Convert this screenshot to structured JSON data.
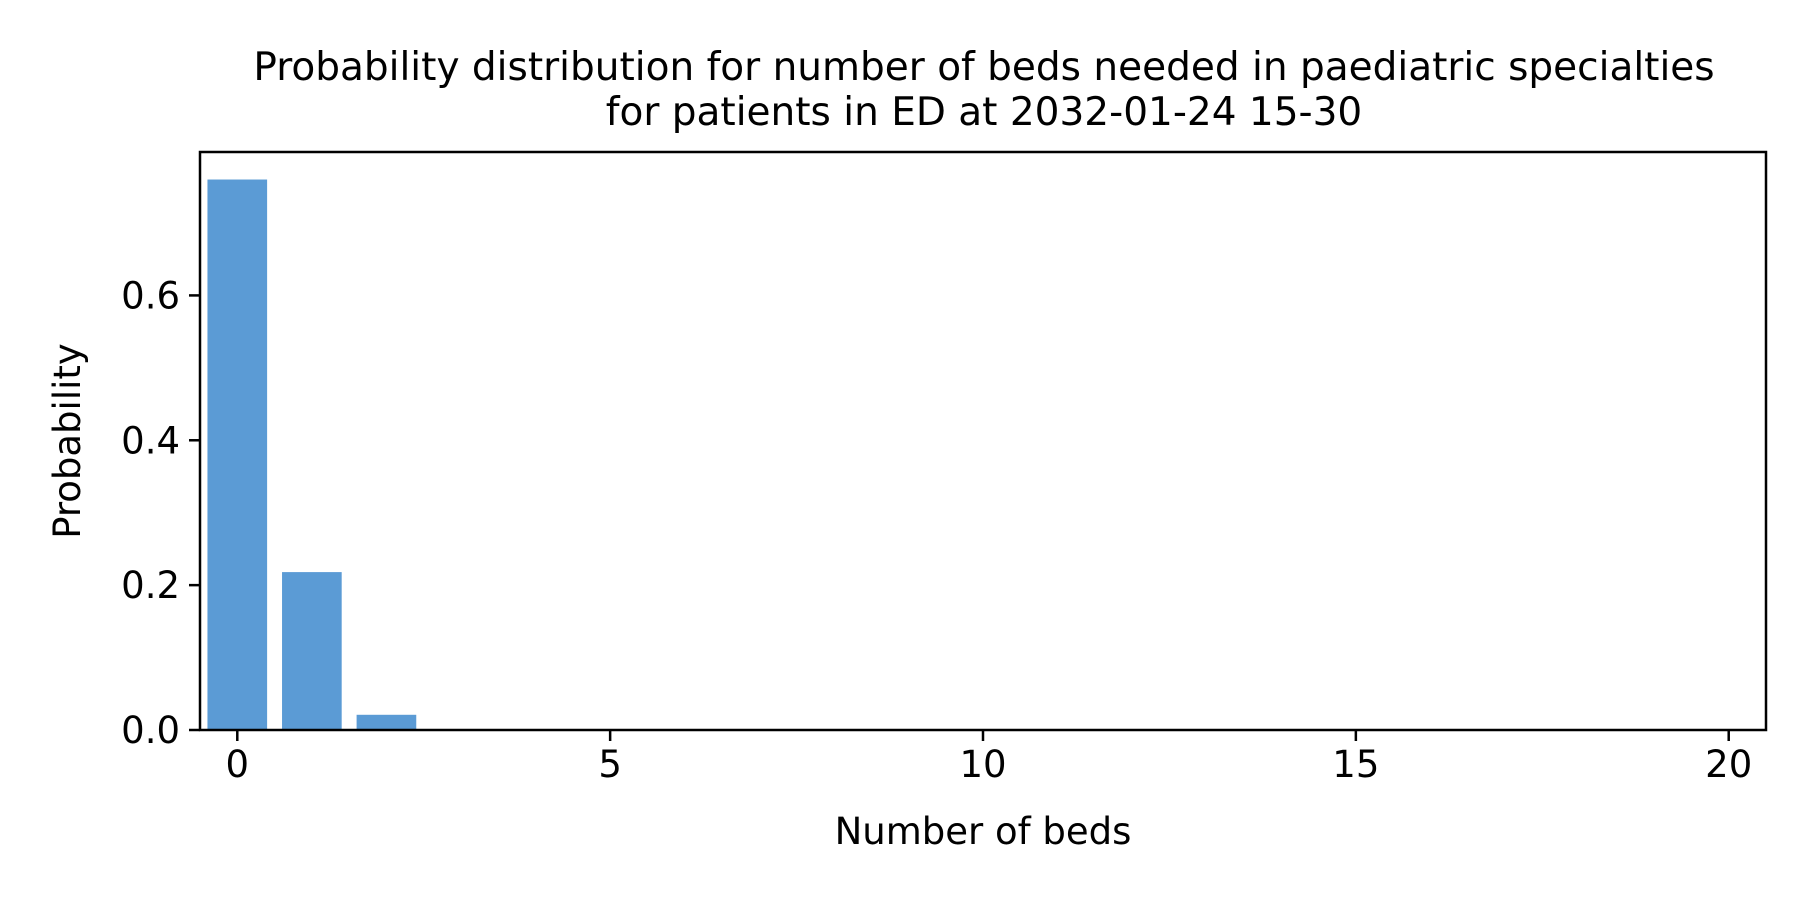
{
  "chart_data": {
    "type": "bar",
    "title_line1": "Probability distribution for number of beds needed in paediatric specialties",
    "title_line2": "for patients in ED at 2032-01-24 15-30",
    "xlabel": "Number of beds",
    "ylabel": "Probability",
    "x": [
      0,
      1,
      2,
      3,
      4,
      5,
      6,
      7,
      8,
      9,
      10,
      11,
      12,
      13,
      14,
      15,
      16,
      17,
      18,
      19,
      20
    ],
    "values": [
      0.76,
      0.218,
      0.021,
      0.001,
      0,
      0,
      0,
      0,
      0,
      0,
      0,
      0,
      0,
      0,
      0,
      0,
      0,
      0,
      0,
      0,
      0
    ],
    "xlim": [
      -0.5,
      20.5
    ],
    "ylim": [
      0,
      0.798
    ],
    "xticks": [
      0,
      5,
      10,
      15,
      20
    ],
    "xtick_labels": [
      "0",
      "5",
      "10",
      "15",
      "20"
    ],
    "yticks": [
      0,
      0.2,
      0.4,
      0.6
    ],
    "ytick_labels": [
      "0.0",
      "0.2",
      "0.4",
      "0.6"
    ],
    "bar_color": "#5b9bd5",
    "grid": false,
    "legend": "none"
  }
}
